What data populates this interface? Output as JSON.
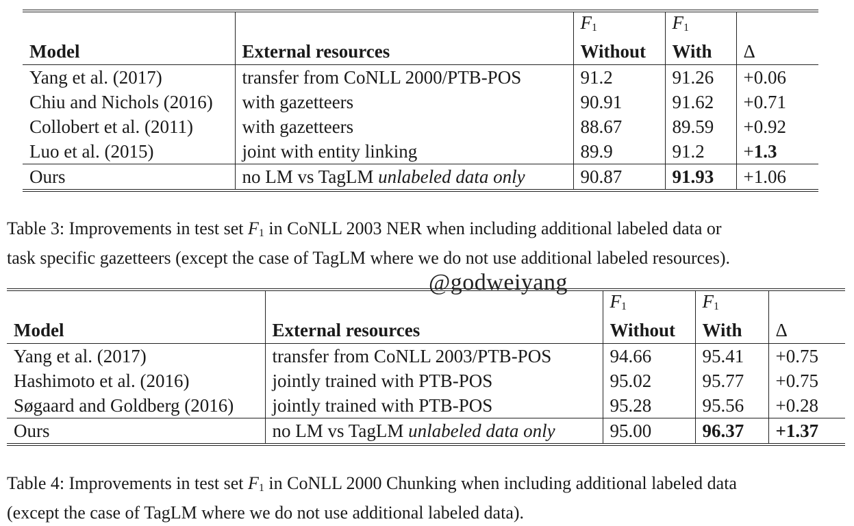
{
  "table3": {
    "header": {
      "model": "Model",
      "external": "External resources",
      "f1_sym": "F",
      "f1_sub": "1",
      "without": "Without",
      "with": "With",
      "delta": "Δ"
    },
    "rows": [
      {
        "model": "Yang et al. (2017)",
        "external": "transfer from CoNLL 2000/PTB-POS",
        "without": "91.2",
        "with": "91.26",
        "delta": "+0.06"
      },
      {
        "model": "Chiu and Nichols (2016)",
        "external": "with gazetteers",
        "without": "90.91",
        "with": "91.62",
        "delta": "+0.71"
      },
      {
        "model": "Collobert et al. (2011)",
        "external": "with gazetteers",
        "without": "88.67",
        "with": "89.59",
        "delta": "+0.92"
      },
      {
        "model": "Luo et al. (2015)",
        "external": "joint with entity linking",
        "without": "89.9",
        "with": "91.2",
        "delta_sign": "+",
        "delta_bold": "1.3"
      }
    ],
    "ours": {
      "model": "Ours",
      "external_plain": "no LM vs TagLM ",
      "external_italic": "unlabeled data only",
      "without": "90.87",
      "with": "91.93",
      "delta": "+1.06"
    },
    "caption_pre": "Table 3: Improvements in test set ",
    "caption_post_line1": " in CoNLL 2003 NER when including additional labeled data or",
    "caption_line2": "task specific gazetteers (except the case of TagLM where we do not use additional labeled resources)."
  },
  "watermark": "@godweiyang",
  "table4": {
    "header": {
      "model": "Model",
      "external": "External resources",
      "f1_sym": "F",
      "f1_sub": "1",
      "without": "Without",
      "with": "With",
      "delta": "Δ"
    },
    "rows": [
      {
        "model": "Yang et al. (2017)",
        "external": "transfer from CoNLL 2003/PTB-POS",
        "without": "94.66",
        "with": "95.41",
        "delta": "+0.75"
      },
      {
        "model": "Hashimoto et al. (2016)",
        "external": "jointly trained with PTB-POS",
        "without": "95.02",
        "with": "95.77",
        "delta": "+0.75"
      },
      {
        "model": "Søgaard and Goldberg (2016)",
        "external": "jointly trained with PTB-POS",
        "without": "95.28",
        "with": "95.56",
        "delta": "+0.28"
      }
    ],
    "ours": {
      "model": "Ours",
      "external_plain": "no LM vs TagLM ",
      "external_italic": "unlabeled data only",
      "without": "95.00",
      "with": "96.37",
      "delta": "+1.37"
    },
    "caption_pre": "Table 4: Improvements in test set ",
    "caption_post_line1": " in CoNLL 2000 Chunking when including additional labeled data",
    "caption_line2": "(except the case of TagLM where we do not use additional labeled data)."
  }
}
